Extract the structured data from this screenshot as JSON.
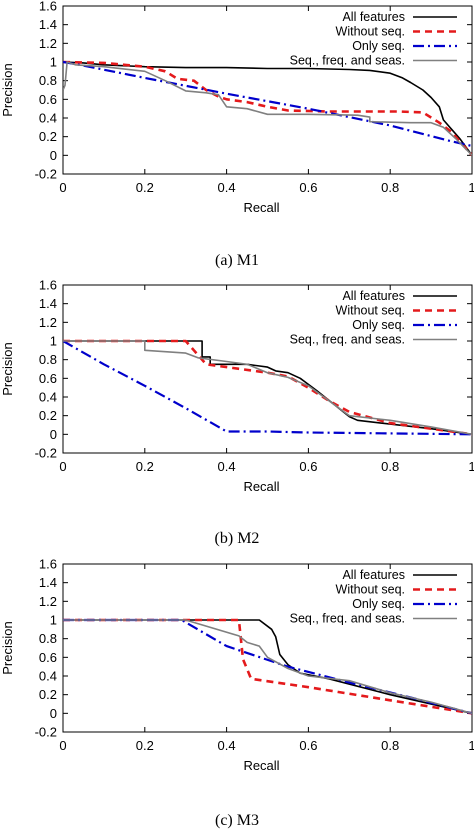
{
  "chart_data": [
    {
      "type": "line",
      "caption": "(a) M1",
      "xlabel": "Recall",
      "ylabel": "Precision",
      "xlim": [
        0,
        1
      ],
      "ylim": [
        -0.2,
        1.6
      ],
      "xticks": [
        "0",
        "0.2",
        "0.4",
        "0.6",
        "0.8",
        "1"
      ],
      "yticks": [
        "-0.2",
        "0",
        "0.2",
        "0.4",
        "0.6",
        "0.8",
        "1",
        "1.2",
        "1.4",
        "1.6"
      ],
      "legend_position": "top-right",
      "grid": false,
      "series": [
        {
          "name": "All features",
          "color": "#000000",
          "dash": "solid",
          "points": [
            [
              0,
              1
            ],
            [
              0.05,
              0.99
            ],
            [
              0.1,
              0.97
            ],
            [
              0.2,
              0.95
            ],
            [
              0.3,
              0.94
            ],
            [
              0.4,
              0.94
            ],
            [
              0.5,
              0.93
            ],
            [
              0.6,
              0.93
            ],
            [
              0.7,
              0.92
            ],
            [
              0.75,
              0.91
            ],
            [
              0.8,
              0.88
            ],
            [
              0.83,
              0.83
            ],
            [
              0.85,
              0.78
            ],
            [
              0.88,
              0.7
            ],
            [
              0.9,
              0.62
            ],
            [
              0.92,
              0.52
            ],
            [
              0.93,
              0.38
            ],
            [
              0.95,
              0.28
            ],
            [
              0.97,
              0.18
            ],
            [
              1,
              0
            ]
          ]
        },
        {
          "name": "Without seq.",
          "color": "#e41a1c",
          "dash": "dashed",
          "points": [
            [
              0,
              1
            ],
            [
              0.1,
              0.99
            ],
            [
              0.15,
              0.97
            ],
            [
              0.2,
              0.95
            ],
            [
              0.25,
              0.9
            ],
            [
              0.28,
              0.82
            ],
            [
              0.32,
              0.8
            ],
            [
              0.35,
              0.7
            ],
            [
              0.38,
              0.63
            ],
            [
              0.4,
              0.6
            ],
            [
              0.45,
              0.57
            ],
            [
              0.5,
              0.52
            ],
            [
              0.55,
              0.48
            ],
            [
              0.65,
              0.47
            ],
            [
              0.75,
              0.47
            ],
            [
              0.82,
              0.47
            ],
            [
              0.88,
              0.46
            ],
            [
              0.92,
              0.35
            ],
            [
              0.95,
              0.25
            ],
            [
              0.97,
              0.15
            ],
            [
              1,
              0
            ]
          ]
        },
        {
          "name": "Only seq.",
          "color": "#0000cc",
          "dash": "dashdot",
          "points": [
            [
              0,
              1
            ],
            [
              0.04,
              0.97
            ],
            [
              0.2,
              0.83
            ],
            [
              0.4,
              0.66
            ],
            [
              0.6,
              0.5
            ],
            [
              0.8,
              0.32
            ],
            [
              0.95,
              0.15
            ],
            [
              1,
              0.1
            ]
          ]
        },
        {
          "name": "Seq., freq. and seas.",
          "color": "#808080",
          "dash": "solid",
          "points": [
            [
              0,
              0.7
            ],
            [
              0.005,
              0.75
            ],
            [
              0.01,
              1
            ],
            [
              0.03,
              0.97
            ],
            [
              0.1,
              0.95
            ],
            [
              0.2,
              0.9
            ],
            [
              0.25,
              0.8
            ],
            [
              0.3,
              0.69
            ],
            [
              0.35,
              0.67
            ],
            [
              0.38,
              0.65
            ],
            [
              0.4,
              0.52
            ],
            [
              0.45,
              0.5
            ],
            [
              0.5,
              0.44
            ],
            [
              0.6,
              0.44
            ],
            [
              0.72,
              0.43
            ],
            [
              0.75,
              0.41
            ],
            [
              0.75,
              0.36
            ],
            [
              0.85,
              0.35
            ],
            [
              0.9,
              0.35
            ],
            [
              0.93,
              0.3
            ],
            [
              0.96,
              0.18
            ],
            [
              1,
              0
            ]
          ]
        }
      ]
    },
    {
      "type": "line",
      "caption": "(b) M2",
      "xlabel": "Recall",
      "ylabel": "Precision",
      "xlim": [
        0,
        1
      ],
      "ylim": [
        -0.2,
        1.6
      ],
      "xticks": [
        "0",
        "0.2",
        "0.4",
        "0.6",
        "0.8",
        "1"
      ],
      "yticks": [
        "-0.2",
        "0",
        "0.2",
        "0.4",
        "0.6",
        "0.8",
        "1",
        "1.2",
        "1.4",
        "1.6"
      ],
      "legend_position": "top-right",
      "grid": false,
      "series": [
        {
          "name": "All features",
          "color": "#000000",
          "dash": "solid",
          "points": [
            [
              0,
              1
            ],
            [
              0.34,
              1
            ],
            [
              0.34,
              0.83
            ],
            [
              0.36,
              0.83
            ],
            [
              0.36,
              0.75
            ],
            [
              0.45,
              0.75
            ],
            [
              0.5,
              0.72
            ],
            [
              0.52,
              0.68
            ],
            [
              0.55,
              0.66
            ],
            [
              0.58,
              0.6
            ],
            [
              0.62,
              0.47
            ],
            [
              0.66,
              0.33
            ],
            [
              0.7,
              0.19
            ],
            [
              0.72,
              0.15
            ],
            [
              0.8,
              0.11
            ],
            [
              0.9,
              0.06
            ],
            [
              1,
              0
            ]
          ]
        },
        {
          "name": "Without seq.",
          "color": "#e41a1c",
          "dash": "dashed",
          "points": [
            [
              0,
              1
            ],
            [
              0.3,
              1
            ],
            [
              0.32,
              0.9
            ],
            [
              0.35,
              0.75
            ],
            [
              0.4,
              0.72
            ],
            [
              0.5,
              0.66
            ],
            [
              0.55,
              0.62
            ],
            [
              0.6,
              0.5
            ],
            [
              0.65,
              0.36
            ],
            [
              0.7,
              0.24
            ],
            [
              0.8,
              0.12
            ],
            [
              0.9,
              0.06
            ],
            [
              1,
              0
            ]
          ]
        },
        {
          "name": "Only seq.",
          "color": "#0000cc",
          "dash": "dashdot",
          "points": [
            [
              0,
              1
            ],
            [
              0.1,
              0.75
            ],
            [
              0.2,
              0.52
            ],
            [
              0.3,
              0.28
            ],
            [
              0.4,
              0.03
            ],
            [
              0.5,
              0.03
            ],
            [
              0.6,
              0.02
            ],
            [
              0.8,
              0.01
            ],
            [
              1,
              0
            ]
          ]
        },
        {
          "name": "Seq., freq. and seas.",
          "color": "#808080",
          "dash": "solid",
          "points": [
            [
              0,
              1
            ],
            [
              0.2,
              1
            ],
            [
              0.2,
              0.9
            ],
            [
              0.3,
              0.87
            ],
            [
              0.33,
              0.82
            ],
            [
              0.4,
              0.78
            ],
            [
              0.45,
              0.75
            ],
            [
              0.5,
              0.66
            ],
            [
              0.55,
              0.61
            ],
            [
              0.6,
              0.52
            ],
            [
              0.65,
              0.36
            ],
            [
              0.7,
              0.2
            ],
            [
              0.8,
              0.15
            ],
            [
              0.9,
              0.08
            ],
            [
              1,
              0
            ]
          ]
        }
      ]
    },
    {
      "type": "line",
      "caption": "(c) M3",
      "xlabel": "Recall",
      "ylabel": "Precision",
      "xlim": [
        0,
        1
      ],
      "ylim": [
        -0.2,
        1.6
      ],
      "xticks": [
        "0",
        "0.2",
        "0.4",
        "0.6",
        "0.8",
        "1"
      ],
      "yticks": [
        "-0.2",
        "0",
        "0.2",
        "0.4",
        "0.6",
        "0.8",
        "1",
        "1.2",
        "1.4",
        "1.6"
      ],
      "legend_position": "top-right",
      "grid": false,
      "series": [
        {
          "name": "All features",
          "color": "#000000",
          "dash": "solid",
          "points": [
            [
              0,
              1
            ],
            [
              0.45,
              1
            ],
            [
              0.48,
              1
            ],
            [
              0.51,
              0.9
            ],
            [
              0.52,
              0.82
            ],
            [
              0.53,
              0.63
            ],
            [
              0.55,
              0.52
            ],
            [
              0.58,
              0.43
            ],
            [
              0.65,
              0.37
            ],
            [
              0.8,
              0.2
            ],
            [
              1,
              0
            ]
          ]
        },
        {
          "name": "Without seq.",
          "color": "#e41a1c",
          "dash": "dashed",
          "points": [
            [
              0,
              1
            ],
            [
              0.43,
              1
            ],
            [
              0.44,
              0.58
            ],
            [
              0.46,
              0.37
            ],
            [
              0.6,
              0.28
            ],
            [
              0.8,
              0.14
            ],
            [
              1,
              0
            ]
          ]
        },
        {
          "name": "Only seq.",
          "color": "#0000cc",
          "dash": "dashdot",
          "points": [
            [
              0,
              1
            ],
            [
              0.29,
              1
            ],
            [
              0.4,
              0.72
            ],
            [
              0.55,
              0.5
            ],
            [
              0.7,
              0.33
            ],
            [
              0.85,
              0.17
            ],
            [
              1,
              0
            ]
          ]
        },
        {
          "name": "Seq., freq. and seas.",
          "color": "#808080",
          "dash": "solid",
          "points": [
            [
              0,
              1
            ],
            [
              0.3,
              1
            ],
            [
              0.43,
              0.83
            ],
            [
              0.45,
              0.76
            ],
            [
              0.48,
              0.72
            ],
            [
              0.5,
              0.6
            ],
            [
              0.55,
              0.48
            ],
            [
              0.6,
              0.4
            ],
            [
              0.7,
              0.35
            ],
            [
              0.8,
              0.22
            ],
            [
              0.9,
              0.12
            ],
            [
              1,
              0
            ]
          ]
        }
      ]
    }
  ]
}
